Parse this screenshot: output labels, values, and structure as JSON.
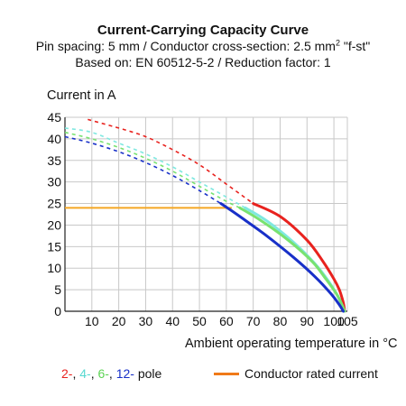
{
  "chart_data": {
    "type": "line",
    "title": "Current-Carrying Capacity Curve",
    "subtitle_prefix": "Pin spacing: 5 mm / Conductor cross-section: 2.5 mm",
    "subtitle_sup": "2",
    "subtitle_suffix": " \"f-st\"",
    "subtitle2": "Based on: EN 60512-5-2 / Reduction factor: 1",
    "ylabel": "Current in A",
    "xlabel": "Ambient operating temperature in °C",
    "xlim": [
      0,
      105
    ],
    "ylim": [
      0,
      45
    ],
    "x_ticks": [
      10,
      20,
      30,
      40,
      50,
      60,
      70,
      80,
      90,
      100,
      105
    ],
    "y_ticks": [
      0,
      5,
      10,
      15,
      20,
      25,
      30,
      35,
      40,
      45
    ],
    "grid": true,
    "series": [
      {
        "label": "2-",
        "color": "#e8221e",
        "dashed": [
          [
            8.5,
            44.5
          ],
          [
            20,
            42.5
          ],
          [
            30,
            40.5
          ],
          [
            40,
            37.5
          ],
          [
            50,
            34
          ],
          [
            60,
            29.5
          ],
          [
            70,
            25
          ]
        ],
        "solid": [
          [
            70,
            25
          ],
          [
            80,
            22
          ],
          [
            90,
            16.5
          ],
          [
            96,
            11.5
          ],
          [
            100,
            7.5
          ],
          [
            102,
            5
          ],
          [
            103.5,
            2
          ],
          [
            104,
            0
          ]
        ]
      },
      {
        "label": "4-",
        "color": "#7fe8e0",
        "dashed": [
          [
            0,
            42.5
          ],
          [
            10,
            41.5
          ],
          [
            20,
            39
          ],
          [
            30,
            36.5
          ],
          [
            40,
            33.5
          ],
          [
            50,
            30
          ],
          [
            60,
            26.5
          ],
          [
            67,
            24
          ]
        ],
        "solid": [
          [
            67,
            24
          ],
          [
            75,
            21
          ],
          [
            85,
            16
          ],
          [
            93,
            11
          ],
          [
            98,
            7
          ],
          [
            101,
            4
          ],
          [
            103,
            1.5
          ],
          [
            104,
            0
          ]
        ]
      },
      {
        "label": "6-",
        "color": "#78e270",
        "dashed": [
          [
            0,
            41.5
          ],
          [
            10,
            40
          ],
          [
            20,
            38
          ],
          [
            30,
            35.5
          ],
          [
            40,
            32.5
          ],
          [
            50,
            29
          ],
          [
            60,
            25.5
          ],
          [
            65,
            24
          ]
        ],
        "solid": [
          [
            65,
            24
          ],
          [
            73,
            21
          ],
          [
            83,
            16.5
          ],
          [
            92,
            11.5
          ],
          [
            97,
            7.5
          ],
          [
            101,
            4
          ],
          [
            103,
            1.5
          ],
          [
            104,
            0
          ]
        ]
      },
      {
        "label": "12-",
        "color": "#1830c8",
        "dashed": [
          [
            0,
            40.5
          ],
          [
            10,
            39
          ],
          [
            20,
            37
          ],
          [
            30,
            34.5
          ],
          [
            40,
            31.5
          ],
          [
            50,
            28
          ],
          [
            58,
            25
          ]
        ],
        "solid": [
          [
            58,
            25
          ],
          [
            65,
            22
          ],
          [
            75,
            17.5
          ],
          [
            85,
            12.5
          ],
          [
            93,
            8
          ],
          [
            99,
            4
          ],
          [
            102,
            1.5
          ],
          [
            103.5,
            0
          ]
        ]
      }
    ],
    "rated_current": {
      "value": 24,
      "x_range": [
        0,
        62
      ],
      "color": "#f5a623"
    },
    "legend": {
      "pole_suffix": " pole",
      "rated_label": "Conductor rated current",
      "rated_swatch_color": "#f07a18"
    }
  }
}
